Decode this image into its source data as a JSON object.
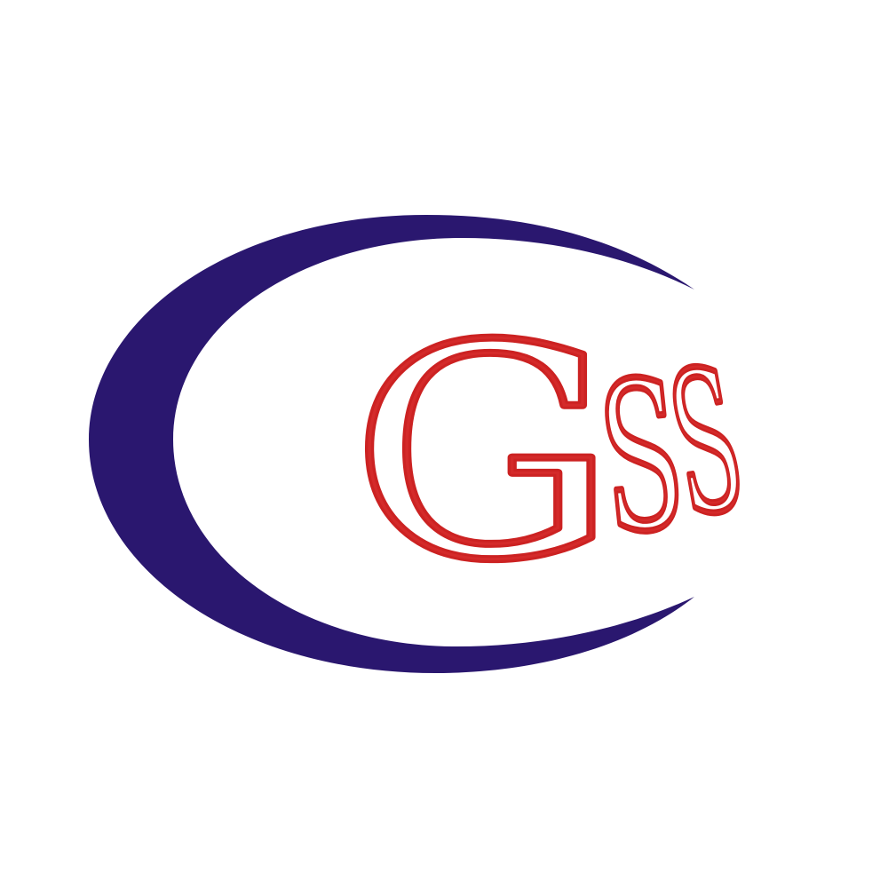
{
  "logo": {
    "text": "GSS",
    "letters": [
      "G",
      "S",
      "S"
    ],
    "colors": {
      "swoosh": "#2a176f",
      "letter_fill": "#ffffff",
      "letter_outline": "#cc2222",
      "letter_inner": "#d42a2a",
      "background": "#ffffff"
    }
  }
}
